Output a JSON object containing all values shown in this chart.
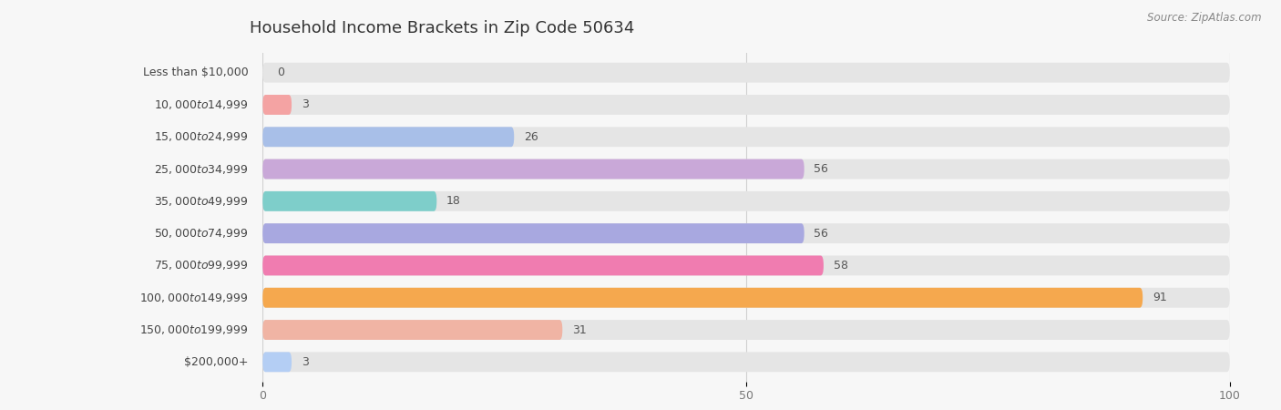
{
  "title": "Household Income Brackets in Zip Code 50634",
  "source": "Source: ZipAtlas.com",
  "categories": [
    "Less than $10,000",
    "$10,000 to $14,999",
    "$15,000 to $24,999",
    "$25,000 to $34,999",
    "$35,000 to $49,999",
    "$50,000 to $74,999",
    "$75,000 to $99,999",
    "$100,000 to $149,999",
    "$150,000 to $199,999",
    "$200,000+"
  ],
  "values": [
    0,
    3,
    26,
    56,
    18,
    56,
    58,
    91,
    31,
    3
  ],
  "bar_colors": [
    "#f9c98c",
    "#f4a3a3",
    "#a8bfe8",
    "#c9a8d8",
    "#7ececa",
    "#a8a8e0",
    "#f07cb0",
    "#f5a84e",
    "#f0b4a4",
    "#b4cef4"
  ],
  "background_color": "#f7f7f7",
  "bar_background_color": "#e5e5e5",
  "xlim": [
    0,
    100
  ],
  "xticks": [
    0,
    50,
    100
  ],
  "title_fontsize": 13,
  "label_fontsize": 9,
  "value_fontsize": 9
}
